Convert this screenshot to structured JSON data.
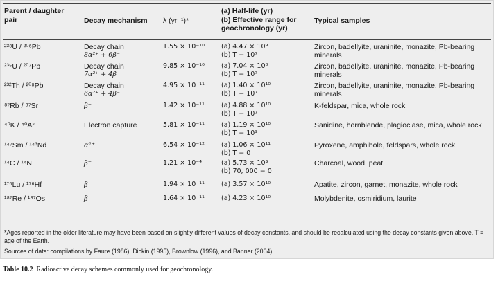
{
  "headers": {
    "pair": "Parent / daughter pair",
    "mechanism": "Decay mechanism",
    "lambda": "λ (yr⁻¹)*",
    "halflife_a": "(a) Half-life (yr)",
    "halflife_b": "(b) Effective range for geochronology (yr)",
    "samples": "Typical samples"
  },
  "rows": [
    {
      "pair": "²³⁸U / ²⁰⁶Pb",
      "mech": "Decay chain",
      "mech_sub": "8α²⁺ + 6β⁻",
      "lambda": "1.55 × 10⁻¹⁰",
      "a": "(a) 4.47 × 10⁹",
      "b": "(b) T − 10⁷",
      "samples": "Zircon, badellyite, uraninite, monazite, Pb-bearing minerals"
    },
    {
      "pair": "²³⁵U / ²⁰⁷Pb",
      "mech": "Decay chain",
      "mech_sub": "7α²⁺ + 4β⁻",
      "lambda": "9.85 × 10⁻¹⁰",
      "a": "(a) 7.04 × 10⁸",
      "b": "(b) T − 10⁷",
      "samples": "Zircon, badellyite, uraninite, monazite, Pb-bearing minerals"
    },
    {
      "pair": "²³²Th / ²⁰⁸Pb",
      "mech": "Decay chain",
      "mech_sub": "6α²⁺ + 4β⁻",
      "lambda": "4.95 × 10⁻¹¹",
      "a": "(a) 1.40 × 10¹⁰",
      "b": "(b) T − 10⁷",
      "samples": "Zircon, badellyite, uraninite, monazite, Pb-bearing minerals"
    },
    {
      "pair": "⁸⁷Rb / ⁸⁷Sr",
      "mech": "β⁻",
      "mech_sub": "",
      "lambda": "1.42 × 10⁻¹¹",
      "a": "(a) 4.88 × 10¹⁰",
      "b": "(b) T − 10⁷",
      "samples": "K-feldspar, mica, whole rock"
    },
    {
      "pair": "⁴⁰K / ⁴⁰Ar",
      "mech": "Electron capture",
      "mech_sub": "",
      "lambda": "5.81 × 10⁻¹¹",
      "a": "(a) 1.19 × 10¹⁰",
      "b": "(b) T − 10³",
      "samples": "Sanidine, hornblende, plagioclase, mica, whole rock"
    },
    {
      "pair": "¹⁴⁷Sm / ¹⁴³Nd",
      "mech": "α²⁺",
      "mech_sub": "",
      "lambda": "6.54 × 10⁻¹²",
      "a": "(a) 1.06 × 10¹¹",
      "b": "(b) T − 0",
      "samples": "Pyroxene, amphibole, feldspars, whole rock"
    },
    {
      "pair": "¹⁴C / ¹⁴N",
      "mech": "β⁻",
      "mech_sub": "",
      "lambda": "1.21 × 10⁻⁴",
      "a": "(a) 5.73 × 10³",
      "b": "(b) 70, 000 − 0",
      "samples": "Charcoal, wood, peat"
    },
    {
      "pair": "¹⁷⁶Lu / ¹⁷⁶Hf",
      "mech": "β⁻",
      "mech_sub": "",
      "lambda": "1.94 × 10⁻¹¹",
      "a": "(a) 3.57 × 10¹⁰",
      "b": "",
      "samples": "Apatite, zircon, garnet, monazite, whole rock"
    },
    {
      "pair": "¹⁸⁷Re / ¹⁸⁷Os",
      "mech": "β⁻",
      "mech_sub": "",
      "lambda": "1.64 × 10⁻¹¹",
      "a": "(a) 4.23 × 10¹⁰",
      "b": "",
      "samples": "Molybdenite, osmiridium, laurite"
    }
  ],
  "footnotes": {
    "ages": "*Ages reported in the older literature may have been based on slightly different values of decay constants, and should be recalculated using the decay constants given above. T = age of the Earth.",
    "sources": "Sources of data: compilations by Faure (1986), Dickin (1995), Brownlow (1996), and Banner (2004)."
  },
  "caption": {
    "label": "Table 10.2",
    "text": "Radioactive decay schemes commonly used for geochronology."
  }
}
